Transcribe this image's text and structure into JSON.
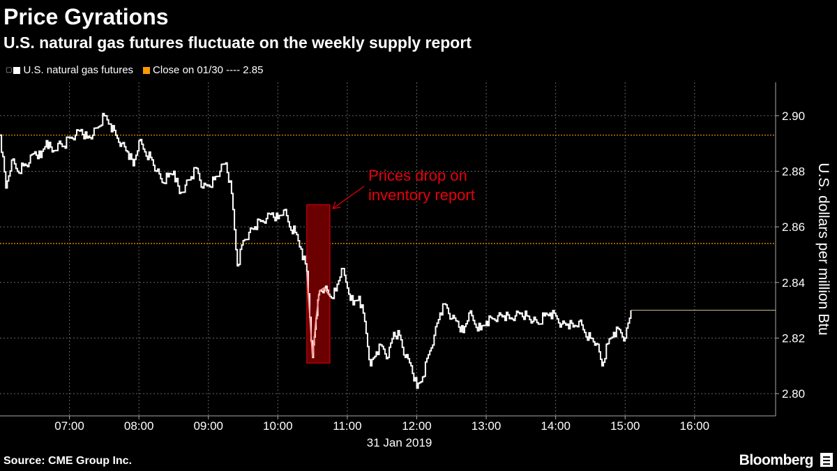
{
  "header": {
    "title": "Price Gyrations",
    "subtitle": "U.S. natural gas futures fluctuate on the weekly supply report"
  },
  "legend": [
    {
      "label": "U.S. natural gas futures",
      "color": "#ffffff",
      "icon": "legend-chart-icon"
    },
    {
      "label": "Close on 01/30 ---- 2.85",
      "color": "#ff9900"
    }
  ],
  "footer": {
    "source": "Source: CME Group Inc.",
    "brand": "Bloomberg"
  },
  "colors": {
    "series": "#ffffff",
    "reference_line": "#ff9900",
    "annotation": "#e8000b",
    "grid": "#666666"
  },
  "chart_data": {
    "type": "line",
    "ylabel": "U.S. dollars per million Btu",
    "xlabel": "31 Jan 2019",
    "ylim": [
      2.792,
      2.912
    ],
    "xlim": [
      "06:00",
      "17:10"
    ],
    "x_ticks": [
      "07:00",
      "08:00",
      "09:00",
      "10:00",
      "11:00",
      "12:00",
      "13:00",
      "14:00",
      "15:00",
      "16:00"
    ],
    "y_ticks": [
      "2.80",
      "2.82",
      "2.84",
      "2.86",
      "2.88",
      "2.90"
    ],
    "grid": true,
    "legend_position": "top-left",
    "reference_lines": [
      {
        "value": 2.893
      },
      {
        "value": 2.854
      }
    ],
    "last_value": 2.83,
    "annotation": {
      "text": [
        "Prices drop on",
        "inventory report"
      ],
      "x_start": "10:25",
      "x_end": "10:45",
      "y_low": 2.811,
      "y_high": 2.868
    },
    "series": [
      {
        "name": "U.S. natural gas futures",
        "x": [
          "06:00",
          "06:05",
          "06:10",
          "06:15",
          "06:20",
          "06:25",
          "06:30",
          "06:35",
          "06:40",
          "06:45",
          "06:50",
          "06:55",
          "07:00",
          "07:05",
          "07:10",
          "07:15",
          "07:20",
          "07:25",
          "07:30",
          "07:35",
          "07:40",
          "07:45",
          "07:50",
          "07:55",
          "08:00",
          "08:05",
          "08:10",
          "08:15",
          "08:20",
          "08:25",
          "08:30",
          "08:35",
          "08:40",
          "08:45",
          "08:50",
          "08:55",
          "09:00",
          "09:05",
          "09:10",
          "09:15",
          "09:20",
          "09:25",
          "09:30",
          "09:35",
          "09:40",
          "09:45",
          "09:50",
          "09:55",
          "10:00",
          "10:05",
          "10:10",
          "10:15",
          "10:20",
          "10:25",
          "10:30",
          "10:33",
          "10:36",
          "10:40",
          "10:45",
          "10:50",
          "10:55",
          "11:00",
          "11:05",
          "11:10",
          "11:15",
          "11:20",
          "11:25",
          "11:30",
          "11:35",
          "11:40",
          "11:45",
          "11:50",
          "11:55",
          "12:00",
          "12:05",
          "12:10",
          "12:15",
          "12:20",
          "12:25",
          "12:30",
          "12:35",
          "12:40",
          "12:45",
          "12:50",
          "12:55",
          "13:00",
          "13:05",
          "13:10",
          "13:15",
          "13:20",
          "13:25",
          "13:30",
          "13:35",
          "13:40",
          "13:45",
          "13:50",
          "13:55",
          "14:00",
          "14:05",
          "14:10",
          "14:15",
          "14:20",
          "14:25",
          "14:30",
          "14:35",
          "14:40",
          "14:45",
          "14:50",
          "14:55",
          "15:00",
          "15:05"
        ],
        "values": [
          2.893,
          2.874,
          2.884,
          2.88,
          2.882,
          2.883,
          2.887,
          2.885,
          2.891,
          2.887,
          2.89,
          2.889,
          2.892,
          2.893,
          2.895,
          2.892,
          2.893,
          2.896,
          2.9,
          2.897,
          2.893,
          2.89,
          2.887,
          2.882,
          2.891,
          2.887,
          2.885,
          2.88,
          2.876,
          2.878,
          2.88,
          2.872,
          2.875,
          2.878,
          2.881,
          2.874,
          2.875,
          2.877,
          2.88,
          2.883,
          2.872,
          2.846,
          2.855,
          2.858,
          2.86,
          2.862,
          2.863,
          2.865,
          2.863,
          2.866,
          2.86,
          2.858,
          2.852,
          2.844,
          2.813,
          2.827,
          2.837,
          2.838,
          2.835,
          2.837,
          2.845,
          2.838,
          2.832,
          2.835,
          2.826,
          2.81,
          2.815,
          2.817,
          2.813,
          2.822,
          2.821,
          2.813,
          2.81,
          2.802,
          2.806,
          2.814,
          2.821,
          2.829,
          2.832,
          2.827,
          2.826,
          2.822,
          2.829,
          2.825,
          2.823,
          2.826,
          2.827,
          2.828,
          2.828,
          2.827,
          2.828,
          2.829,
          2.828,
          2.826,
          2.825,
          2.828,
          2.829,
          2.828,
          2.825,
          2.825,
          2.824,
          2.826,
          2.822,
          2.82,
          2.818,
          2.81,
          2.818,
          2.822,
          2.823,
          2.82,
          2.83
        ]
      }
    ]
  }
}
